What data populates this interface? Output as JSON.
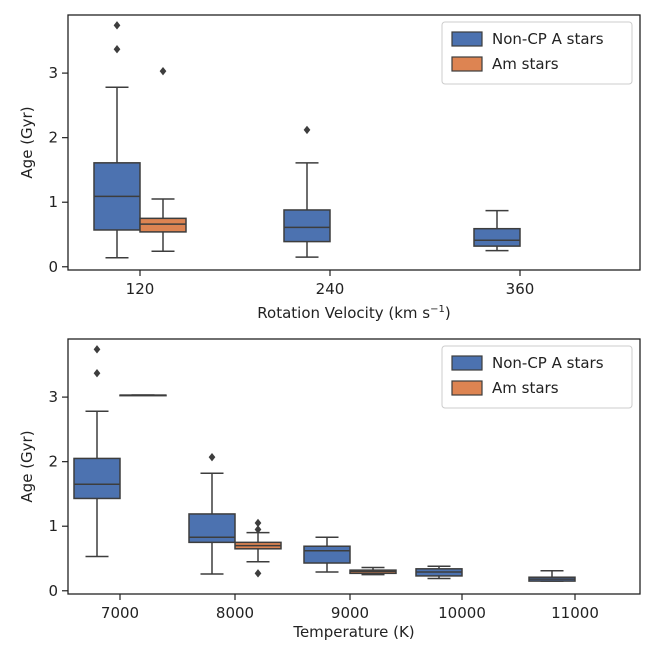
{
  "chart_data": [
    {
      "type": "boxplot",
      "xlabel": "Rotation Velocity (km s",
      "xlabel_superscript": "−1",
      "xlabel_suffix": ")",
      "ylabel": "Age (Gyr)",
      "ylim": [
        -0.05,
        3.9
      ],
      "yticks": [
        0,
        1,
        2,
        3
      ],
      "categories": [
        "120",
        "240",
        "360"
      ],
      "legend": {
        "position": "top-right",
        "entries": [
          "Non-CP A stars",
          "Am stars"
        ]
      },
      "series": [
        {
          "name": "Non-CP A stars",
          "color": "#4C72B0",
          "boxes": [
            {
              "category": "120",
              "whisker_low": 0.14,
              "q1": 0.57,
              "median": 1.09,
              "q3": 1.61,
              "whisker_high": 2.78,
              "outliers": [
                3.37,
                3.74
              ]
            },
            {
              "category": "240",
              "whisker_low": 0.15,
              "q1": 0.39,
              "median": 0.61,
              "q3": 0.88,
              "whisker_high": 1.61,
              "outliers": [
                2.12
              ]
            },
            {
              "category": "360",
              "whisker_low": 0.25,
              "q1": 0.32,
              "median": 0.41,
              "q3": 0.59,
              "whisker_high": 0.87,
              "outliers": []
            }
          ]
        },
        {
          "name": "Am stars",
          "color": "#DD8452",
          "boxes": [
            {
              "category": "120",
              "whisker_low": 0.24,
              "q1": 0.54,
              "median": 0.66,
              "q3": 0.75,
              "whisker_high": 1.05,
              "outliers": [
                3.03
              ]
            }
          ]
        }
      ]
    },
    {
      "type": "boxplot",
      "xlabel": "Temperature (K)",
      "ylabel": "Age (Gyr)",
      "ylim": [
        -0.05,
        3.9
      ],
      "yticks": [
        0,
        1,
        2,
        3
      ],
      "categories": [
        "7000",
        "8000",
        "9000",
        "10000",
        "11000"
      ],
      "legend": {
        "position": "top-right",
        "entries": [
          "Non-CP A stars",
          "Am stars"
        ]
      },
      "series": [
        {
          "name": "Non-CP A stars",
          "color": "#4C72B0",
          "boxes": [
            {
              "category": "7000",
              "whisker_low": 0.53,
              "q1": 1.43,
              "median": 1.65,
              "q3": 2.05,
              "whisker_high": 2.78,
              "outliers": [
                3.37,
                3.74
              ]
            },
            {
              "category": "8000",
              "whisker_low": 0.26,
              "q1": 0.75,
              "median": 0.83,
              "q3": 1.19,
              "whisker_high": 1.82,
              "outliers": [
                2.07
              ]
            },
            {
              "category": "9000",
              "whisker_low": 0.29,
              "q1": 0.43,
              "median": 0.62,
              "q3": 0.69,
              "whisker_high": 0.83,
              "outliers": []
            },
            {
              "category": "10000",
              "whisker_low": 0.19,
              "q1": 0.23,
              "median": 0.29,
              "q3": 0.34,
              "whisker_high": 0.38,
              "outliers": []
            },
            {
              "category": "11000",
              "whisker_low": 0.15,
              "q1": 0.15,
              "median": 0.18,
              "q3": 0.21,
              "whisker_high": 0.31,
              "outliers": []
            }
          ]
        },
        {
          "name": "Am stars",
          "color": "#DD8452",
          "boxes": [
            {
              "category": "7000",
              "whisker_low": 3.03,
              "q1": 3.03,
              "median": 3.03,
              "q3": 3.03,
              "whisker_high": 3.03,
              "outliers": []
            },
            {
              "category": "8000",
              "whisker_low": 0.45,
              "q1": 0.65,
              "median": 0.7,
              "q3": 0.75,
              "whisker_high": 0.9,
              "outliers": [
                0.27,
                0.95,
                1.05
              ]
            },
            {
              "category": "9000",
              "whisker_low": 0.25,
              "q1": 0.27,
              "median": 0.3,
              "q3": 0.32,
              "whisker_high": 0.36,
              "outliers": []
            }
          ]
        }
      ]
    }
  ]
}
